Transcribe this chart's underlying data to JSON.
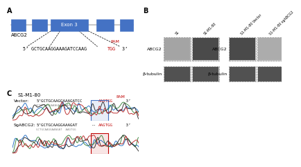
{
  "panel_A": {
    "label": "A",
    "exon3_label": "Exon 3",
    "gene_label": "ABCG2",
    "seq_before_pam": "5’ GCTGCAAGGAAAGATCCAAG",
    "seq_pam": "TGG",
    "seq_after_pam": " 3’",
    "pam_label": "PAM"
  },
  "panel_B": {
    "label": "B",
    "lanes1": [
      "S1",
      "S1-M1-80"
    ],
    "lanes2": [
      "S1-M1-80 Vector",
      "S1-M1-80 sgABCG2"
    ],
    "abcg2_label": "ABCG2",
    "tubulin_label": "β-tubulin"
  },
  "panel_C": {
    "label": "C",
    "title": "S1-M1-80",
    "vector_label": "Vector:",
    "sg_label": "SgABCG2:",
    "vector_seq_black": "5’GCTGCAAGGAAAGATCC",
    "vector_seq_red": "AAGTGG",
    "vector_seq_end": " 3’",
    "sg_seq_black": "5’GCTGCAAGGAAAGAT",
    "sg_seq_dash": "--",
    "sg_seq_red": "AAGTGG",
    "sg_seq_end": " 3’",
    "vector_sub": "GCTGCAAGGAAAGATCCAAGTGG",
    "sg_sub": "GCTGCAAGGAAAGAT  AAGTGG",
    "pam_label": "PAM"
  },
  "colors": {
    "blue": "#4472C4",
    "red": "#C00000",
    "black": "#000000",
    "white": "#ffffff",
    "gray": "#888888",
    "light_gray": "#BEBEBE",
    "dark_band": "#3C3C3C",
    "mid_band": "#888888",
    "blot_bg": "#C0C0C0"
  },
  "chrom_colors": [
    "#1565C0",
    "#2E7D32",
    "#212121",
    "#B71C1C"
  ]
}
